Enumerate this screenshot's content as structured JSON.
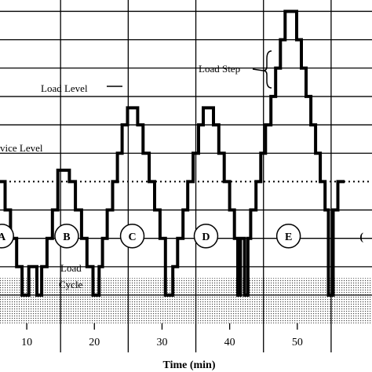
{
  "chart_data": {
    "type": "line",
    "title": "",
    "xlabel": "Time (min)",
    "ylabel": "",
    "x_ticks": [
      10,
      20,
      30,
      40,
      50
    ],
    "xlim": [
      5,
      60
    ],
    "grid": true,
    "grid_lines_x": [
      5,
      15,
      25,
      35,
      45,
      55
    ],
    "grid_levels": [
      -2.5,
      0,
      2.5,
      5,
      7.5,
      10,
      12.5,
      15,
      17.5,
      20,
      22.5
    ],
    "ylim": [
      -2.5,
      23.5
    ],
    "levels": {
      "load_level": 12.5,
      "service_level": 7.5,
      "shaded_band_top": -1,
      "shaded_band_bottom": -2.5
    },
    "series": [
      {
        "values": [
          [
            5,
            7.5
          ],
          [
            6.8,
            7.5
          ],
          [
            6.8,
            5
          ],
          [
            7.6,
            5
          ],
          [
            7.6,
            2.5
          ],
          [
            8.5,
            2.5
          ],
          [
            8.5,
            0
          ],
          [
            9.3,
            0
          ],
          [
            9.3,
            -2.5
          ],
          [
            10.3,
            -2.5
          ],
          [
            10.3,
            0
          ],
          [
            11.5,
            0
          ],
          [
            11.5,
            -2.5
          ],
          [
            12.2,
            -2.5
          ],
          [
            12.2,
            0
          ],
          [
            13,
            0
          ],
          [
            13,
            2.5
          ],
          [
            13.8,
            2.5
          ],
          [
            13.8,
            5
          ],
          [
            14.6,
            5
          ],
          [
            14.6,
            7.5
          ],
          [
            14.6,
            7.5
          ],
          [
            14.6,
            8.5
          ],
          [
            16.3,
            8.5
          ],
          [
            16.3,
            7.5
          ],
          [
            17.2,
            7.5
          ],
          [
            17.2,
            5
          ],
          [
            18.1,
            5
          ],
          [
            18.1,
            2.5
          ],
          [
            18.9,
            2.5
          ],
          [
            18.9,
            0
          ],
          [
            19.8,
            0
          ],
          [
            19.8,
            -2.5
          ],
          [
            20.7,
            -2.5
          ],
          [
            20.7,
            0
          ],
          [
            21.2,
            0
          ],
          [
            21.2,
            2.5
          ],
          [
            21.9,
            2.5
          ],
          [
            21.9,
            5
          ],
          [
            22.7,
            5
          ],
          [
            22.7,
            7.5
          ],
          [
            23.4,
            7.5
          ],
          [
            23.4,
            10
          ],
          [
            24.1,
            10
          ],
          [
            24.1,
            12.5
          ],
          [
            24.9,
            12.5
          ],
          [
            24.9,
            14
          ],
          [
            26.4,
            14
          ],
          [
            26.4,
            12.5
          ],
          [
            27.2,
            12.5
          ],
          [
            27.2,
            10
          ],
          [
            28.1,
            10
          ],
          [
            28.1,
            7.5
          ],
          [
            28.9,
            7.5
          ],
          [
            28.9,
            5
          ],
          [
            29.7,
            5
          ],
          [
            29.7,
            2.5
          ],
          [
            30.5,
            2.5
          ],
          [
            30.5,
            -2.5
          ],
          [
            31.6,
            -2.5
          ],
          [
            31.6,
            0
          ],
          [
            32.3,
            0
          ],
          [
            32.3,
            2.5
          ],
          [
            33.1,
            2.5
          ],
          [
            33.1,
            5
          ],
          [
            33.8,
            5
          ],
          [
            33.8,
            7.5
          ],
          [
            34.6,
            7.5
          ],
          [
            34.6,
            10
          ],
          [
            35.4,
            10
          ],
          [
            35.4,
            12.5
          ],
          [
            36.1,
            12.5
          ],
          [
            36.1,
            14
          ],
          [
            37.6,
            14
          ],
          [
            37.6,
            12.5
          ],
          [
            38.4,
            12.5
          ],
          [
            38.4,
            10
          ],
          [
            39.2,
            10
          ],
          [
            39.2,
            7.5
          ],
          [
            40,
            7.5
          ],
          [
            40,
            5
          ],
          [
            40.7,
            5
          ],
          [
            40.7,
            2.5
          ],
          [
            41.2,
            2.5
          ],
          [
            41.2,
            -2.5
          ],
          [
            41.6,
            -2.5
          ],
          [
            41.6,
            2.5
          ],
          [
            42.2,
            2.5
          ],
          [
            42.2,
            -2.5
          ],
          [
            42.7,
            -2.5
          ],
          [
            42.7,
            2.5
          ],
          [
            43.1,
            2.5
          ],
          [
            43.1,
            5
          ],
          [
            43.9,
            5
          ],
          [
            43.9,
            7.5
          ],
          [
            44.6,
            7.5
          ],
          [
            44.6,
            10
          ],
          [
            45.3,
            10
          ],
          [
            45.3,
            12.5
          ],
          [
            46.1,
            12.5
          ],
          [
            46.1,
            15
          ],
          [
            46.8,
            15
          ],
          [
            46.8,
            17.5
          ],
          [
            47.5,
            17.5
          ],
          [
            47.5,
            20
          ],
          [
            48.2,
            20
          ],
          [
            48.2,
            22.5
          ],
          [
            49.9,
            22.5
          ],
          [
            49.9,
            20
          ],
          [
            50.6,
            20
          ],
          [
            50.6,
            17.5
          ],
          [
            51.3,
            17.5
          ],
          [
            51.3,
            15
          ],
          [
            52,
            15
          ],
          [
            52,
            12.5
          ],
          [
            52.7,
            12.5
          ],
          [
            52.7,
            10
          ],
          [
            53.4,
            10
          ],
          [
            53.4,
            7.5
          ],
          [
            54.1,
            7.5
          ],
          [
            54.1,
            5
          ],
          [
            54.6,
            5
          ],
          [
            54.6,
            -2.5
          ],
          [
            55.3,
            -2.5
          ],
          [
            55.3,
            5
          ],
          [
            56,
            5
          ],
          [
            56,
            7.5
          ],
          [
            57,
            7.5
          ]
        ]
      }
    ],
    "annotations": [
      {
        "id": "service-level",
        "text": "vice Level"
      },
      {
        "id": "load-level",
        "text": "Load Level"
      },
      {
        "id": "load-step",
        "text": "Load Step"
      },
      {
        "id": "load-cycle-1",
        "text": "Load"
      },
      {
        "id": "load-cycle-2",
        "text": "Cycle"
      }
    ],
    "cycle_labels": [
      {
        "text": "A",
        "x": 6.3,
        "y": 2.7
      },
      {
        "text": "B",
        "x": 15.9,
        "y": 2.7
      },
      {
        "text": "C",
        "x": 25.6,
        "y": 2.7
      },
      {
        "text": "D",
        "x": 36.5,
        "y": 2.7
      },
      {
        "text": "E",
        "x": 48.7,
        "y": 2.7
      },
      {
        "text": "(",
        "x": 59.5,
        "y": 2.7
      }
    ]
  }
}
